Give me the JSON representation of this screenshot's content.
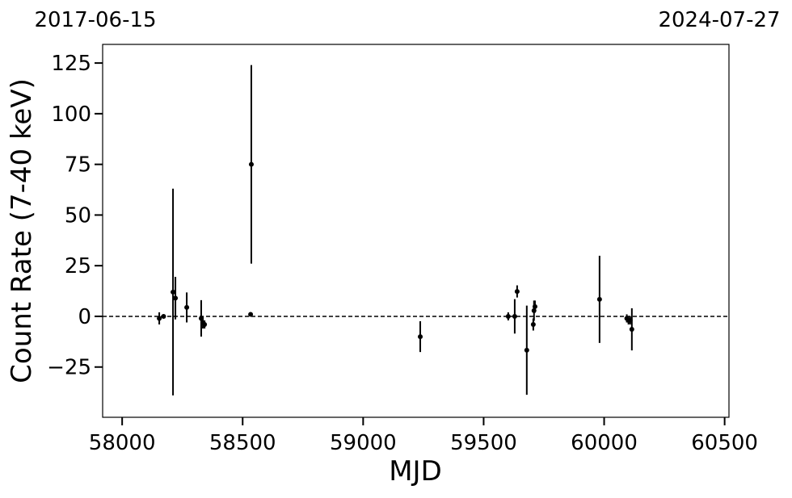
{
  "chart_data": {
    "type": "errorbar",
    "top_left_label": "2017-06-15",
    "top_right_label": "2024-07-27",
    "xlabel": "MJD",
    "ylabel": "Count Rate (7-40 keV)",
    "color": "#000000",
    "hline": 0,
    "xlim": [
      57919,
      60518
    ],
    "ylim": [
      -49.8,
      134.2
    ],
    "xticks": [
      58000,
      58500,
      59000,
      59500,
      60000,
      60500
    ],
    "yticks": [
      {
        "value": -25,
        "label": "−25"
      },
      0,
      25,
      50,
      75,
      100,
      125
    ],
    "x": [
      58154,
      58172,
      58211,
      58221,
      58268,
      58328,
      58335,
      58342,
      58533,
      58536,
      59237,
      59602,
      59629,
      59639,
      59679,
      59706,
      59709,
      59713,
      59981,
      60094,
      60101,
      60108,
      60115
    ],
    "y": [
      -1,
      0,
      12,
      9,
      4.4,
      -1,
      -3,
      -4,
      1,
      75,
      -10,
      0,
      0,
      12.3,
      -16.7,
      -4,
      2.8,
      4.8,
      8.4,
      -1,
      -2,
      -2,
      -6.4
    ],
    "yerr": [
      3,
      1,
      51,
      10.5,
      7.4,
      9,
      3,
      2,
      1,
      49,
      7.6,
      2,
      8.5,
      3,
      22,
      3,
      5,
      3,
      21.5,
      2,
      2,
      2,
      10.4
    ]
  }
}
